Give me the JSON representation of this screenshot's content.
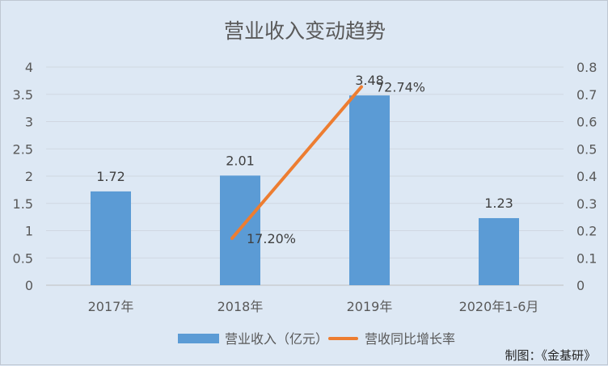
{
  "chart_data": {
    "type": "bar",
    "title": "营业收入变动趋势",
    "categories": [
      "2017年",
      "2018年",
      "2019年",
      "2020年1-6月"
    ],
    "series": [
      {
        "name": "营业收入（亿元）",
        "type": "bar",
        "axis": "left",
        "values": [
          1.72,
          2.01,
          3.48,
          1.23
        ],
        "labels": [
          "1.72",
          "2.01",
          "3.48",
          "1.23"
        ],
        "color": "#5b9bd5"
      },
      {
        "name": "营收同比增长率",
        "type": "line",
        "axis": "right",
        "values": [
          null,
          0.172,
          0.7274,
          null
        ],
        "labels": [
          "",
          "17.20%",
          "72.74%",
          ""
        ],
        "color": "#ed7d31"
      }
    ],
    "y_left": {
      "ticks": [
        "0",
        "0.5",
        "1",
        "1.5",
        "2",
        "2.5",
        "3",
        "3.5",
        "4"
      ],
      "lim": [
        0,
        4
      ]
    },
    "y_right": {
      "ticks": [
        "0",
        "0.1",
        "0.2",
        "0.3",
        "0.4",
        "0.5",
        "0.6",
        "0.7",
        "0.8"
      ],
      "lim": [
        0,
        0.8
      ]
    },
    "grid": true,
    "legend_position": "bottom",
    "source_note": "制图：《金基研》"
  }
}
